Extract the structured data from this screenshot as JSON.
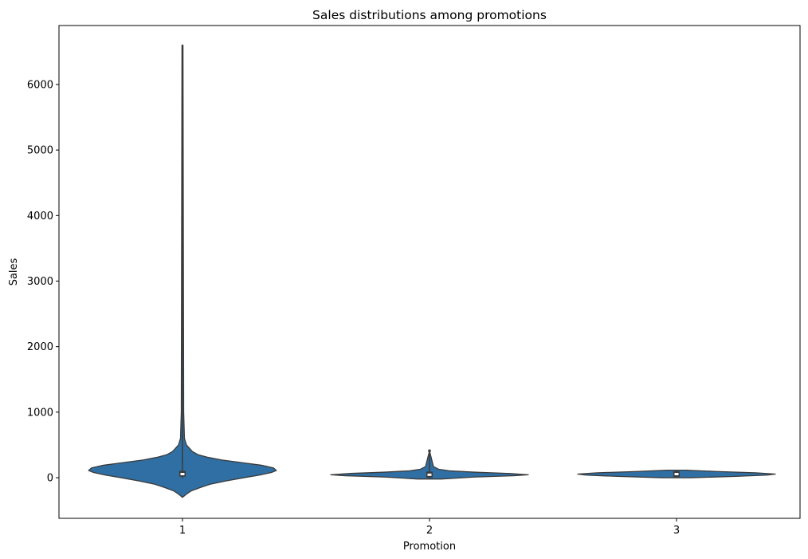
{
  "chart_data": {
    "type": "violin",
    "title": "Sales distributions among promotions",
    "xlabel": "Promotion",
    "ylabel": "Sales",
    "categories": [
      "1",
      "2",
      "3"
    ],
    "ylim": [
      -620,
      6900
    ],
    "yticks": [
      0,
      1000,
      2000,
      3000,
      4000,
      5000,
      6000
    ],
    "ytick_labels": [
      "0",
      "1000",
      "2000",
      "3000",
      "4000",
      "5000",
      "6000"
    ],
    "grid": false,
    "legend": "none",
    "colors": {
      "violin_fill": "#2f6fa3",
      "edge": "#3b3b3b",
      "box": "#3b3b3b",
      "median": "#ffffff"
    },
    "violins": [
      {
        "category": "1",
        "range": [
          -300,
          6600
        ],
        "quartiles": {
          "q1": 35,
          "median": 55,
          "q3": 85
        },
        "whisker": [
          -10,
          6600
        ],
        "profile": [
          [
            -300,
            0.0
          ],
          [
            -250,
            0.04
          ],
          [
            -200,
            0.09
          ],
          [
            -150,
            0.18
          ],
          [
            -100,
            0.28
          ],
          [
            -50,
            0.44
          ],
          [
            0,
            0.62
          ],
          [
            40,
            0.78
          ],
          [
            80,
            0.9
          ],
          [
            110,
            0.95
          ],
          [
            150,
            0.92
          ],
          [
            190,
            0.8
          ],
          [
            230,
            0.6
          ],
          [
            270,
            0.4
          ],
          [
            310,
            0.26
          ],
          [
            350,
            0.16
          ],
          [
            400,
            0.1
          ],
          [
            450,
            0.07
          ],
          [
            500,
            0.04
          ],
          [
            600,
            0.02
          ],
          [
            1000,
            0.012
          ],
          [
            6600,
            0.005
          ]
        ]
      },
      {
        "category": "2",
        "range": [
          -20,
          410
        ],
        "quartiles": {
          "q1": 20,
          "median": 45,
          "q3": 75
        },
        "whisker": [
          -20,
          410
        ],
        "profile": [
          [
            -20,
            0.12
          ],
          [
            10,
            0.45
          ],
          [
            30,
            0.85
          ],
          [
            45,
            1.0
          ],
          [
            65,
            0.8
          ],
          [
            85,
            0.45
          ],
          [
            105,
            0.2
          ],
          [
            130,
            0.09
          ],
          [
            170,
            0.04
          ],
          [
            410,
            0.0
          ]
        ]
      },
      {
        "category": "3",
        "range": [
          0,
          115
        ],
        "quartiles": {
          "q1": 30,
          "median": 55,
          "q3": 80
        },
        "whisker": [
          0,
          115
        ],
        "profile": [
          [
            0,
            0.15
          ],
          [
            20,
            0.6
          ],
          [
            40,
            0.92
          ],
          [
            55,
            1.0
          ],
          [
            75,
            0.8
          ],
          [
            95,
            0.4
          ],
          [
            115,
            0.1
          ]
        ]
      }
    ]
  }
}
